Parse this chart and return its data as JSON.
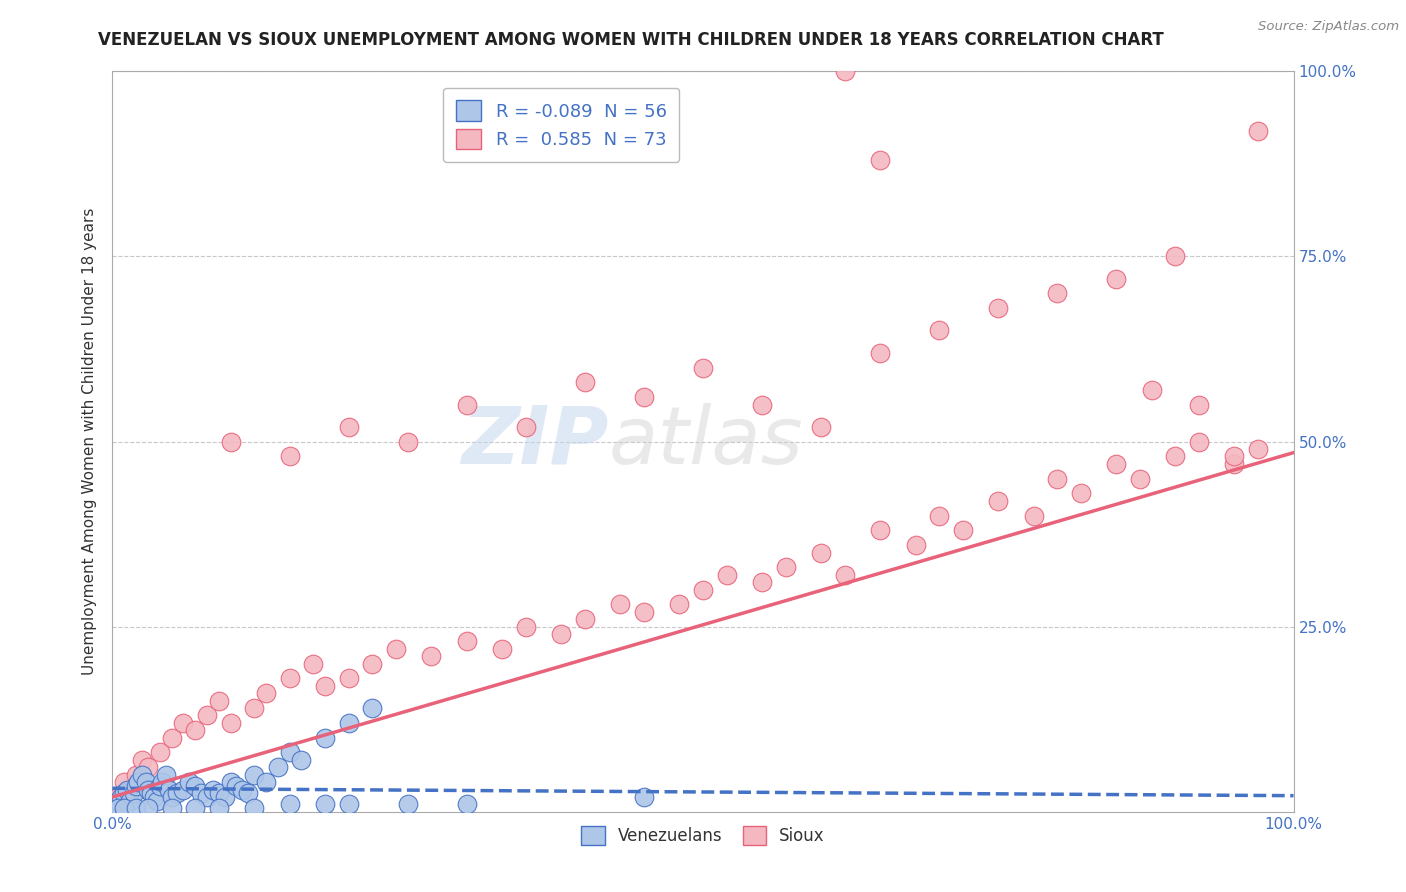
{
  "title": "VENEZUELAN VS SIOUX UNEMPLOYMENT AMONG WOMEN WITH CHILDREN UNDER 18 YEARS CORRELATION CHART",
  "source": "Source: ZipAtlas.com",
  "ylabel": "Unemployment Among Women with Children Under 18 years",
  "xlim": [
    0,
    1.0
  ],
  "ylim": [
    0,
    1.0
  ],
  "legend_entries": [
    {
      "label": "Venezuelans",
      "color": "#aec6e8",
      "line_color": "#5b9bd5",
      "R": "-0.089",
      "N": "56"
    },
    {
      "label": "Sioux",
      "color": "#f4b8c1",
      "line_color": "#e8637a",
      "R": "0.585",
      "N": "73"
    }
  ],
  "venezuelan_line_color": "#4472c4",
  "sioux_line_color": "#e8637a",
  "venezuelan_scatter_color": "#aec6e8",
  "sioux_scatter_color": "#f4b8c1",
  "background_color": "#ffffff",
  "grid_color": "#c8c8c8",
  "watermark": "ZIPatlas",
  "title_fontsize": 12,
  "axis_label_fontsize": 11,
  "tick_fontsize": 11,
  "sioux_x": [
    0.005,
    0.01,
    0.015,
    0.02,
    0.025,
    0.03,
    0.04,
    0.05,
    0.06,
    0.07,
    0.08,
    0.09,
    0.1,
    0.12,
    0.13,
    0.15,
    0.17,
    0.18,
    0.2,
    0.22,
    0.24,
    0.27,
    0.3,
    0.33,
    0.35,
    0.38,
    0.4,
    0.43,
    0.45,
    0.48,
    0.5,
    0.52,
    0.55,
    0.57,
    0.6,
    0.62,
    0.65,
    0.68,
    0.7,
    0.72,
    0.75,
    0.78,
    0.8,
    0.82,
    0.85,
    0.87,
    0.9,
    0.92,
    0.95,
    0.97,
    0.1,
    0.15,
    0.2,
    0.25,
    0.3,
    0.35,
    0.4,
    0.45,
    0.5,
    0.55,
    0.6,
    0.65,
    0.7,
    0.75,
    0.8,
    0.85,
    0.9,
    0.95,
    0.62,
    0.65,
    0.88,
    0.92,
    0.97
  ],
  "sioux_y": [
    0.02,
    0.04,
    0.03,
    0.05,
    0.07,
    0.06,
    0.08,
    0.1,
    0.12,
    0.11,
    0.13,
    0.15,
    0.12,
    0.14,
    0.16,
    0.18,
    0.2,
    0.17,
    0.18,
    0.2,
    0.22,
    0.21,
    0.23,
    0.22,
    0.25,
    0.24,
    0.26,
    0.28,
    0.27,
    0.28,
    0.3,
    0.32,
    0.31,
    0.33,
    0.35,
    0.32,
    0.38,
    0.36,
    0.4,
    0.38,
    0.42,
    0.4,
    0.45,
    0.43,
    0.47,
    0.45,
    0.48,
    0.5,
    0.47,
    0.49,
    0.5,
    0.48,
    0.52,
    0.5,
    0.55,
    0.52,
    0.58,
    0.56,
    0.6,
    0.55,
    0.52,
    0.62,
    0.65,
    0.68,
    0.7,
    0.72,
    0.75,
    0.48,
    1.0,
    0.88,
    0.57,
    0.55,
    0.92
  ],
  "ven_x": [
    0.0,
    0.003,
    0.005,
    0.007,
    0.01,
    0.012,
    0.015,
    0.018,
    0.02,
    0.022,
    0.025,
    0.028,
    0.03,
    0.033,
    0.035,
    0.038,
    0.04,
    0.042,
    0.045,
    0.048,
    0.05,
    0.055,
    0.06,
    0.065,
    0.07,
    0.075,
    0.08,
    0.085,
    0.09,
    0.095,
    0.1,
    0.105,
    0.11,
    0.115,
    0.12,
    0.13,
    0.14,
    0.15,
    0.16,
    0.18,
    0.2,
    0.22,
    0.45,
    0.005,
    0.01,
    0.02,
    0.03,
    0.05,
    0.07,
    0.09,
    0.12,
    0.15,
    0.18,
    0.2,
    0.25,
    0.3
  ],
  "ven_y": [
    0.005,
    0.01,
    0.015,
    0.02,
    0.025,
    0.03,
    0.015,
    0.025,
    0.035,
    0.04,
    0.05,
    0.04,
    0.03,
    0.025,
    0.02,
    0.015,
    0.035,
    0.04,
    0.05,
    0.03,
    0.02,
    0.025,
    0.03,
    0.04,
    0.035,
    0.025,
    0.02,
    0.03,
    0.025,
    0.02,
    0.04,
    0.035,
    0.03,
    0.025,
    0.05,
    0.04,
    0.06,
    0.08,
    0.07,
    0.1,
    0.12,
    0.14,
    0.02,
    0.005,
    0.005,
    0.005,
    0.005,
    0.005,
    0.005,
    0.005,
    0.005,
    0.01,
    0.01,
    0.01,
    0.01,
    0.01
  ]
}
